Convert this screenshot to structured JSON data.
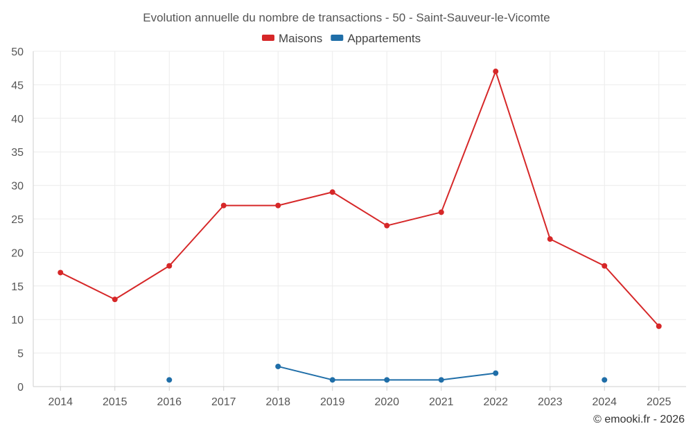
{
  "chart_data": {
    "type": "line",
    "title": "Evolution annuelle du nombre de transactions - 50 - Saint-Sauveur-le-Vicomte",
    "xlabel": "",
    "ylabel": "",
    "categories": [
      "2014",
      "2015",
      "2016",
      "2017",
      "2018",
      "2019",
      "2020",
      "2021",
      "2022",
      "2023",
      "2024",
      "2025"
    ],
    "ylim": [
      0,
      50
    ],
    "yticks": [
      0,
      5,
      10,
      15,
      20,
      25,
      30,
      35,
      40,
      45,
      50
    ],
    "grid": true,
    "legend_position": "top-center",
    "series": [
      {
        "name": "Maisons",
        "color": "#d62728",
        "values": [
          17,
          13,
          18,
          27,
          27,
          29,
          24,
          26,
          47,
          22,
          18,
          9
        ]
      },
      {
        "name": "Appartements",
        "color": "#1f6ea8",
        "values": [
          null,
          null,
          1,
          null,
          3,
          1,
          1,
          1,
          2,
          null,
          1,
          null
        ]
      }
    ],
    "credit": "© emooki.fr - 2026"
  }
}
